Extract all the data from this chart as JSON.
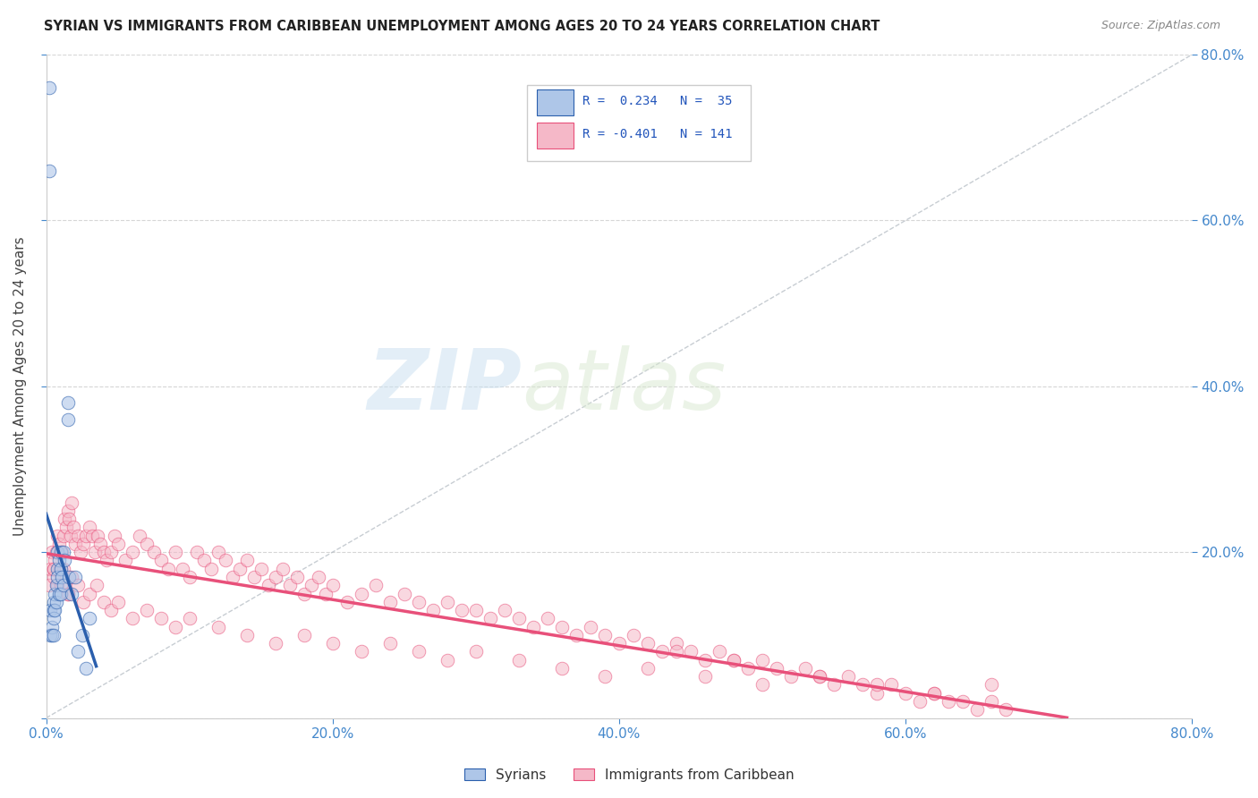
{
  "title": "SYRIAN VS IMMIGRANTS FROM CARIBBEAN UNEMPLOYMENT AMONG AGES 20 TO 24 YEARS CORRELATION CHART",
  "source": "Source: ZipAtlas.com",
  "ylabel": "Unemployment Among Ages 20 to 24 years",
  "syrian_color": "#aec6e8",
  "caribbean_color": "#f5b8c8",
  "syrian_line_color": "#2b5fad",
  "caribbean_line_color": "#e8507a",
  "diagonal_color": "#b0b8c0",
  "watermark_zip": "ZIP",
  "watermark_atlas": "atlas",
  "syrians_label": "Syrians",
  "caribbean_label": "Immigrants from Caribbean",
  "xlim": [
    0.0,
    0.8
  ],
  "ylim": [
    0.0,
    0.8
  ],
  "syrian_x": [
    0.002,
    0.002,
    0.003,
    0.003,
    0.004,
    0.004,
    0.005,
    0.005,
    0.005,
    0.005,
    0.006,
    0.006,
    0.007,
    0.007,
    0.008,
    0.008,
    0.008,
    0.009,
    0.009,
    0.01,
    0.01,
    0.01,
    0.011,
    0.012,
    0.012,
    0.013,
    0.015,
    0.015,
    0.016,
    0.018,
    0.02,
    0.022,
    0.025,
    0.028,
    0.03
  ],
  "syrian_y": [
    0.76,
    0.66,
    0.13,
    0.1,
    0.11,
    0.1,
    0.14,
    0.13,
    0.12,
    0.1,
    0.15,
    0.13,
    0.16,
    0.14,
    0.2,
    0.18,
    0.17,
    0.19,
    0.15,
    0.2,
    0.18,
    0.15,
    0.17,
    0.2,
    0.16,
    0.19,
    0.38,
    0.36,
    0.17,
    0.15,
    0.17,
    0.08,
    0.1,
    0.06,
    0.12
  ],
  "caribbean_x": [
    0.002,
    0.003,
    0.004,
    0.005,
    0.006,
    0.007,
    0.008,
    0.009,
    0.01,
    0.011,
    0.012,
    0.013,
    0.014,
    0.015,
    0.016,
    0.017,
    0.018,
    0.019,
    0.02,
    0.022,
    0.024,
    0.026,
    0.028,
    0.03,
    0.032,
    0.034,
    0.036,
    0.038,
    0.04,
    0.042,
    0.045,
    0.048,
    0.05,
    0.055,
    0.06,
    0.065,
    0.07,
    0.075,
    0.08,
    0.085,
    0.09,
    0.095,
    0.1,
    0.105,
    0.11,
    0.115,
    0.12,
    0.125,
    0.13,
    0.135,
    0.14,
    0.145,
    0.15,
    0.155,
    0.16,
    0.165,
    0.17,
    0.175,
    0.18,
    0.185,
    0.19,
    0.195,
    0.2,
    0.21,
    0.22,
    0.23,
    0.24,
    0.25,
    0.26,
    0.27,
    0.28,
    0.29,
    0.3,
    0.31,
    0.32,
    0.33,
    0.34,
    0.35,
    0.36,
    0.37,
    0.38,
    0.39,
    0.4,
    0.41,
    0.42,
    0.43,
    0.44,
    0.45,
    0.46,
    0.47,
    0.48,
    0.49,
    0.5,
    0.51,
    0.52,
    0.53,
    0.54,
    0.55,
    0.56,
    0.57,
    0.58,
    0.59,
    0.6,
    0.61,
    0.62,
    0.63,
    0.64,
    0.65,
    0.66,
    0.67,
    0.005,
    0.008,
    0.012,
    0.015,
    0.018,
    0.022,
    0.026,
    0.03,
    0.035,
    0.04,
    0.045,
    0.05,
    0.06,
    0.07,
    0.08,
    0.09,
    0.1,
    0.12,
    0.14,
    0.16,
    0.18,
    0.2,
    0.22,
    0.24,
    0.26,
    0.28,
    0.3,
    0.33,
    0.36,
    0.39,
    0.42,
    0.46,
    0.5,
    0.54,
    0.58,
    0.62,
    0.66,
    0.005,
    0.01,
    0.015,
    0.44,
    0.48
  ],
  "caribbean_y": [
    0.16,
    0.18,
    0.2,
    0.18,
    0.19,
    0.2,
    0.22,
    0.21,
    0.18,
    0.2,
    0.22,
    0.24,
    0.23,
    0.25,
    0.24,
    0.22,
    0.26,
    0.23,
    0.21,
    0.22,
    0.2,
    0.21,
    0.22,
    0.23,
    0.22,
    0.2,
    0.22,
    0.21,
    0.2,
    0.19,
    0.2,
    0.22,
    0.21,
    0.19,
    0.2,
    0.22,
    0.21,
    0.2,
    0.19,
    0.18,
    0.2,
    0.18,
    0.17,
    0.2,
    0.19,
    0.18,
    0.2,
    0.19,
    0.17,
    0.18,
    0.19,
    0.17,
    0.18,
    0.16,
    0.17,
    0.18,
    0.16,
    0.17,
    0.15,
    0.16,
    0.17,
    0.15,
    0.16,
    0.14,
    0.15,
    0.16,
    0.14,
    0.15,
    0.14,
    0.13,
    0.14,
    0.13,
    0.13,
    0.12,
    0.13,
    0.12,
    0.11,
    0.12,
    0.11,
    0.1,
    0.11,
    0.1,
    0.09,
    0.1,
    0.09,
    0.08,
    0.09,
    0.08,
    0.07,
    0.08,
    0.07,
    0.06,
    0.07,
    0.06,
    0.05,
    0.06,
    0.05,
    0.04,
    0.05,
    0.04,
    0.03,
    0.04,
    0.03,
    0.02,
    0.03,
    0.02,
    0.02,
    0.01,
    0.02,
    0.01,
    0.17,
    0.16,
    0.18,
    0.15,
    0.17,
    0.16,
    0.14,
    0.15,
    0.16,
    0.14,
    0.13,
    0.14,
    0.12,
    0.13,
    0.12,
    0.11,
    0.12,
    0.11,
    0.1,
    0.09,
    0.1,
    0.09,
    0.08,
    0.09,
    0.08,
    0.07,
    0.08,
    0.07,
    0.06,
    0.05,
    0.06,
    0.05,
    0.04,
    0.05,
    0.04,
    0.03,
    0.04,
    0.18,
    0.16,
    0.15,
    0.08,
    0.07
  ]
}
